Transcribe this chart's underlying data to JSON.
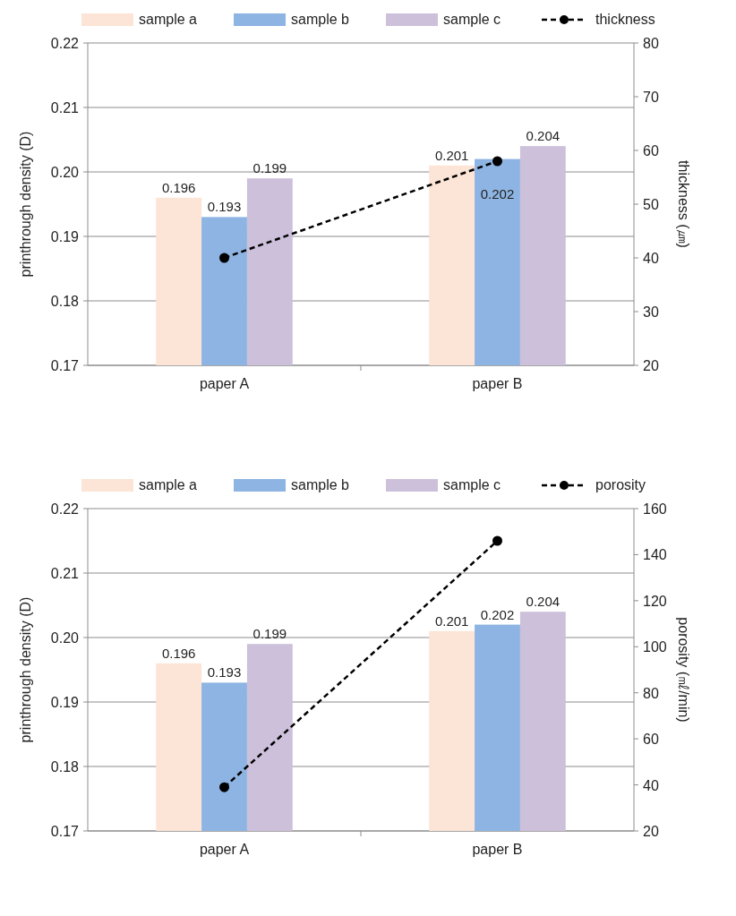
{
  "chart_data": [
    {
      "type": "bar",
      "categories": [
        "paper A",
        "paper B"
      ],
      "ylabel": "printhrough density (D)",
      "y2label": "thickness (㎛)",
      "ylim": [
        0.17,
        0.22
      ],
      "yticks": [
        0.17,
        0.18,
        0.19,
        {
          "value": 0.2,
          "label": "0.20"
        },
        0.21,
        0.22
      ],
      "y2lim": [
        20,
        80
      ],
      "y2ticks": [
        20,
        30,
        40,
        50,
        60,
        70,
        80
      ],
      "grid": "y",
      "legend": "top",
      "series": [
        {
          "name": "sample a",
          "color": "#fce4d6",
          "values": [
            0.196,
            0.201
          ],
          "value_labels": [
            "0.196",
            "0.201"
          ]
        },
        {
          "name": "sample b",
          "color": "#8db4e2",
          "values": [
            0.193,
            0.202
          ],
          "value_labels": [
            "0.193",
            "0.202"
          ]
        },
        {
          "name": "sample c",
          "color": "#ccc0da",
          "values": [
            0.199,
            0.204
          ],
          "value_labels": [
            "0.199",
            "0.204"
          ]
        },
        {
          "name": "thickness",
          "type": "line",
          "axis": "y2",
          "color": "#000000",
          "marker": "circle",
          "line_style": "dashed",
          "values": [
            40,
            58
          ]
        }
      ]
    },
    {
      "type": "bar",
      "categories": [
        "paper A",
        "paper B"
      ],
      "ylabel": "printhrough density (D)",
      "y2label": "porosity (㎖/min)",
      "ylim": [
        0.17,
        0.22
      ],
      "yticks": [
        0.17,
        0.18,
        0.19,
        {
          "value": 0.2,
          "label": "0.20"
        },
        0.21,
        0.22
      ],
      "y2lim": [
        20,
        160
      ],
      "y2ticks": [
        20,
        40,
        60,
        80,
        100,
        120,
        140,
        160
      ],
      "grid": "y",
      "legend": "top",
      "series": [
        {
          "name": "sample a",
          "color": "#fce4d6",
          "values": [
            0.196,
            0.201
          ],
          "value_labels": [
            "0.196",
            "0.201"
          ]
        },
        {
          "name": "sample b",
          "color": "#8db4e2",
          "values": [
            0.193,
            0.202
          ],
          "value_labels": [
            "0.193",
            "0.202"
          ]
        },
        {
          "name": "sample c",
          "color": "#ccc0da",
          "values": [
            0.199,
            0.204
          ],
          "value_labels": [
            "0.199",
            "0.204"
          ]
        },
        {
          "name": "porosity",
          "type": "line",
          "axis": "y2",
          "color": "#000000",
          "marker": "circle",
          "line_style": "dashed",
          "values": [
            39,
            146
          ]
        }
      ]
    }
  ]
}
